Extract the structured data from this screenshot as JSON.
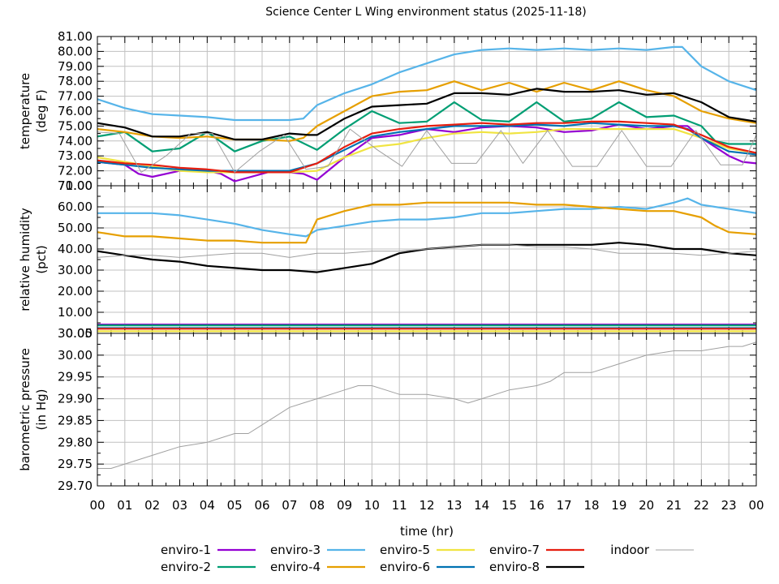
{
  "chart_data": {
    "type": "line",
    "title": "Science Center L Wing environment status (2025-11-18)",
    "xlabel": "time (hr)",
    "x_ticks": [
      "00",
      "01",
      "02",
      "03",
      "04",
      "05",
      "06",
      "07",
      "08",
      "09",
      "10",
      "11",
      "12",
      "13",
      "14",
      "15",
      "16",
      "17",
      "18",
      "19",
      "20",
      "21",
      "22",
      "23",
      "00"
    ],
    "xlim": [
      0,
      24
    ],
    "grid": true,
    "legend_placement": "bottom",
    "legend": [
      {
        "name": "enviro-1",
        "color": "#9400d3"
      },
      {
        "name": "enviro-3",
        "color": "#56b4e9"
      },
      {
        "name": "enviro-5",
        "color": "#f0e442"
      },
      {
        "name": "enviro-7",
        "color": "#e51e10"
      },
      {
        "name": "indoor",
        "color": "#a0a0a0"
      },
      {
        "name": "enviro-2",
        "color": "#009e73"
      },
      {
        "name": "enviro-4",
        "color": "#e69f00"
      },
      {
        "name": "enviro-6",
        "color": "#0072b2"
      },
      {
        "name": "enviro-8",
        "color": "#000000"
      }
    ],
    "panels": [
      {
        "id": "temperature",
        "ylabel": [
          "temperature",
          "(deg F)"
        ],
        "ylim": [
          71,
          81
        ],
        "y_ticks": [
          "71.00",
          "72.00",
          "73.00",
          "74.00",
          "75.00",
          "76.00",
          "77.00",
          "78.00",
          "79.00",
          "80.00",
          "81.00"
        ],
        "series": [
          {
            "name": "enviro-1",
            "x": [
              0,
              1,
              1.5,
              2,
              3,
              4,
              4.5,
              5,
              6,
              6.2,
              7,
              7.5,
              8,
              9,
              10,
              11,
              12,
              13,
              14,
              15,
              16,
              17,
              18,
              19,
              20,
              21,
              21.5,
              22,
              23,
              23.5,
              24
            ],
            "y": [
              72.6,
              72.4,
              71.8,
              71.6,
              72.0,
              72.0,
              71.8,
              71.3,
              71.8,
              71.9,
              71.9,
              71.8,
              71.4,
              72.9,
              74.2,
              74.4,
              74.8,
              74.6,
              74.9,
              75.0,
              74.9,
              74.6,
              74.7,
              75.1,
              74.8,
              75.0,
              75.0,
              74.2,
              73.0,
              72.6,
              72.5
            ]
          },
          {
            "name": "enviro-2",
            "x": [
              0,
              1,
              2,
              3,
              4,
              5,
              6,
              7,
              8,
              9,
              10,
              11,
              12,
              13,
              14,
              15,
              16,
              17,
              18,
              19,
              20,
              21,
              22,
              22.5,
              23,
              24
            ],
            "y": [
              74.3,
              74.6,
              73.3,
              73.5,
              74.6,
              73.3,
              74.0,
              74.3,
              73.4,
              74.8,
              76.0,
              75.2,
              75.3,
              76.6,
              75.4,
              75.3,
              76.6,
              75.3,
              75.5,
              76.6,
              75.6,
              75.7,
              75.0,
              74.0,
              73.8,
              73.8
            ]
          },
          {
            "name": "enviro-3",
            "x": [
              0,
              1,
              2,
              3,
              4,
              5,
              6,
              7,
              7.5,
              8,
              9,
              10,
              11,
              12,
              13,
              14,
              15,
              16,
              17,
              18,
              19,
              20,
              21,
              21.3,
              22,
              23,
              24
            ],
            "y": [
              76.8,
              76.2,
              75.8,
              75.7,
              75.6,
              75.4,
              75.4,
              75.4,
              75.5,
              76.4,
              77.2,
              77.8,
              78.6,
              79.2,
              79.8,
              80.1,
              80.2,
              80.1,
              80.2,
              80.1,
              80.2,
              80.1,
              80.3,
              80.3,
              79.0,
              78.0,
              77.4
            ]
          },
          {
            "name": "enviro-4",
            "x": [
              0,
              1,
              2,
              3,
              4,
              5,
              6,
              7,
              7.5,
              8,
              9,
              10,
              11,
              12,
              13,
              14,
              15,
              16,
              17,
              18,
              19,
              20,
              21,
              22,
              23,
              24
            ],
            "y": [
              74.8,
              74.6,
              74.3,
              74.2,
              74.3,
              74.1,
              74.1,
              74.0,
              74.2,
              75.0,
              76.0,
              77.0,
              77.3,
              77.4,
              78.0,
              77.4,
              77.9,
              77.3,
              77.9,
              77.4,
              78.0,
              77.4,
              77.0,
              76.0,
              75.5,
              75.2
            ]
          },
          {
            "name": "enviro-5",
            "x": [
              0,
              1,
              2,
              3,
              4,
              5,
              6,
              7,
              8,
              9,
              10,
              11,
              12,
              13,
              14,
              15,
              16,
              17,
              18,
              19,
              20,
              21,
              22,
              23,
              24
            ],
            "y": [
              72.9,
              72.6,
              72.3,
              72.0,
              71.9,
              71.9,
              71.9,
              71.9,
              72.0,
              72.9,
              73.6,
              73.8,
              74.2,
              74.5,
              74.6,
              74.5,
              74.6,
              74.8,
              74.8,
              74.8,
              74.8,
              74.8,
              74.2,
              73.5,
              73.2
            ]
          },
          {
            "name": "enviro-6",
            "x": [
              0,
              1,
              2,
              3,
              4,
              5,
              6,
              7,
              8,
              9,
              10,
              11,
              12,
              13,
              14,
              15,
              16,
              17,
              18,
              19,
              20,
              21,
              21.5,
              22,
              23,
              24
            ],
            "y": [
              72.6,
              72.4,
              72.2,
              72.1,
              72.0,
              72.0,
              72.0,
              72.0,
              72.5,
              73.4,
              74.3,
              74.6,
              74.8,
              75.0,
              75.0,
              75.0,
              75.1,
              75.0,
              75.2,
              75.1,
              75.0,
              75.0,
              74.8,
              74.2,
              73.3,
              73.1
            ]
          },
          {
            "name": "enviro-7",
            "x": [
              0,
              1,
              2,
              3,
              4,
              5,
              6,
              7,
              8,
              9,
              10,
              11,
              12,
              13,
              14,
              15,
              16,
              17,
              18,
              19,
              20,
              21,
              22,
              23,
              24
            ],
            "y": [
              72.7,
              72.5,
              72.4,
              72.2,
              72.1,
              71.9,
              71.9,
              71.9,
              72.5,
              73.6,
              74.5,
              74.8,
              75.0,
              75.1,
              75.2,
              75.1,
              75.2,
              75.2,
              75.3,
              75.3,
              75.2,
              75.1,
              74.4,
              73.6,
              73.2
            ]
          },
          {
            "name": "enviro-8",
            "x": [
              0,
              1,
              2,
              3,
              4,
              5,
              6,
              7,
              7.7,
              8,
              9,
              10,
              11,
              12,
              13,
              14,
              15,
              16,
              17,
              18,
              19,
              20,
              21,
              22,
              23,
              24
            ],
            "y": [
              75.2,
              74.9,
              74.3,
              74.3,
              74.6,
              74.1,
              74.1,
              74.5,
              74.4,
              74.4,
              75.5,
              76.3,
              76.4,
              76.5,
              77.2,
              77.2,
              77.1,
              77.5,
              77.3,
              77.3,
              77.4,
              77.1,
              77.2,
              76.6,
              75.6,
              75.3
            ]
          },
          {
            "name": "indoor",
            "x": [
              0,
              0.8,
              1.6,
              2.5,
              3.4,
              4.2,
              5,
              5.9,
              6.8,
              7.6,
              8.4,
              9.2,
              10.2,
              11.1,
              12,
              12.9,
              13.8,
              14.7,
              15.5,
              16.4,
              17.3,
              18.2,
              19.1,
              20,
              20.9,
              21.8,
              22.7,
              23.5,
              24
            ],
            "y": [
              74.6,
              74.5,
              71.9,
              73.0,
              74.5,
              74.5,
              71.9,
              73.3,
              74.4,
              72.1,
              72.3,
              74.8,
              73.4,
              72.3,
              74.7,
              72.5,
              72.5,
              74.7,
              72.5,
              74.7,
              72.3,
              72.3,
              74.7,
              72.3,
              72.3,
              74.7,
              72.4,
              72.4,
              74.4
            ]
          }
        ]
      },
      {
        "id": "humidity",
        "ylabel": [
          "relative humidity",
          "(pct)"
        ],
        "ylim": [
          0,
          70
        ],
        "y_ticks": [
          "0.00",
          "10.00",
          "20.00",
          "30.00",
          "40.00",
          "50.00",
          "60.00",
          "70.00"
        ],
        "series": [
          {
            "name": "enviro-1",
            "x": [
              0,
              24
            ],
            "y": [
              4.2,
              4.2
            ]
          },
          {
            "name": "enviro-2",
            "x": [
              0,
              24
            ],
            "y": [
              3.8,
              3.8
            ]
          },
          {
            "name": "enviro-3",
            "x": [
              0,
              1,
              2,
              3,
              4,
              5,
              6,
              7,
              7.6,
              8,
              9,
              10,
              11,
              12,
              13,
              14,
              15,
              16,
              17,
              18,
              19,
              20,
              21,
              21.5,
              22,
              23,
              24
            ],
            "y": [
              57,
              57,
              57,
              56,
              54,
              52,
              49,
              47,
              46,
              49,
              51,
              53,
              54,
              54,
              55,
              57,
              57,
              58,
              59,
              59,
              60,
              59,
              62,
              64,
              61,
              59,
              57
            ]
          },
          {
            "name": "enviro-4",
            "x": [
              0,
              1,
              2,
              3,
              4,
              5,
              6,
              7,
              7.6,
              8,
              9,
              10,
              11,
              12,
              13,
              14,
              15,
              16,
              17,
              18,
              19,
              20,
              21,
              22,
              22.5,
              23,
              24
            ],
            "y": [
              48,
              46,
              46,
              45,
              44,
              44,
              43,
              43,
              43,
              54,
              58,
              61,
              61,
              62,
              62,
              62,
              62,
              61,
              61,
              60,
              59,
              58,
              58,
              55,
              51,
              48,
              47
            ]
          },
          {
            "name": "enviro-5",
            "x": [
              0,
              24
            ],
            "y": [
              1.0,
              1.0
            ]
          },
          {
            "name": "enviro-6",
            "x": [
              0,
              24
            ],
            "y": [
              2.5,
              2.5
            ]
          },
          {
            "name": "enviro-7",
            "x": [
              0,
              24
            ],
            "y": [
              2.2,
              2.2
            ]
          },
          {
            "name": "enviro-8",
            "x": [
              0,
              1,
              2,
              3,
              4,
              5,
              6,
              7,
              8,
              9,
              10,
              11,
              12,
              13,
              14,
              15,
              16,
              17,
              18,
              19,
              20,
              21,
              22,
              23,
              24
            ],
            "y": [
              39,
              37,
              35,
              34,
              32,
              31,
              30,
              30,
              29,
              31,
              33,
              38,
              40,
              41,
              42,
              42,
              42,
              42,
              42,
              43,
              42,
              40,
              40,
              38,
              37
            ]
          },
          {
            "name": "indoor",
            "x": [
              0,
              1,
              2,
              3,
              4,
              5,
              6,
              7,
              8,
              9,
              10,
              11,
              12,
              13,
              14,
              15,
              16,
              17,
              18,
              19,
              20,
              21,
              22,
              23,
              24
            ],
            "y": [
              36,
              37,
              37,
              36,
              37,
              38,
              38,
              36,
              38,
              38,
              39,
              39,
              40,
              41,
              42,
              42,
              41,
              41,
              40,
              38,
              38,
              38,
              37,
              38,
              39
            ]
          }
        ]
      },
      {
        "id": "pressure",
        "ylabel": [
          "barometric pressure",
          "(in Hg)"
        ],
        "ylim": [
          29.7,
          30.05
        ],
        "y_ticks": [
          "29.70",
          "29.75",
          "29.80",
          "29.85",
          "29.90",
          "29.95",
          "30.00",
          "30.05"
        ],
        "series": [
          {
            "name": "indoor",
            "x": [
              0,
              0.5,
              1,
              2,
              3,
              4,
              4.5,
              5,
              5.5,
              6,
              6.5,
              7,
              7.5,
              8,
              9,
              9.5,
              10,
              10.5,
              11,
              12,
              13,
              13.5,
              14,
              15,
              16,
              16.5,
              17,
              18,
              18.5,
              19,
              20,
              21,
              22,
              23,
              23.5,
              24
            ],
            "y": [
              29.74,
              29.74,
              29.75,
              29.77,
              29.79,
              29.8,
              29.81,
              29.82,
              29.82,
              29.84,
              29.86,
              29.88,
              29.89,
              29.9,
              29.92,
              29.93,
              29.93,
              29.92,
              29.91,
              29.91,
              29.9,
              29.89,
              29.9,
              29.92,
              29.93,
              29.94,
              29.96,
              29.96,
              29.97,
              29.98,
              30.0,
              30.01,
              30.01,
              30.02,
              30.02,
              30.03
            ]
          }
        ]
      }
    ]
  }
}
